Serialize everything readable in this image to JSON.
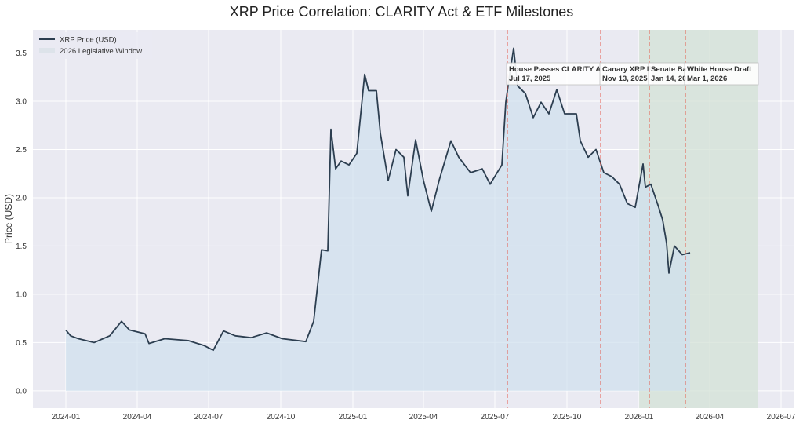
{
  "chart_data": {
    "type": "line",
    "title": "XRP Price Correlation: CLARITY Act & ETF Milestones",
    "xlabel": "",
    "ylabel": "Price (USD)",
    "xlim": [
      "2023-11-20",
      "2026-07-17"
    ],
    "ylim": [
      -0.18,
      3.74
    ],
    "grid": true,
    "legend_placement": "top-left",
    "x_ticks": [
      "2024-01",
      "2024-04",
      "2024-07",
      "2024-10",
      "2025-01",
      "2025-04",
      "2025-07",
      "2025-10",
      "2026-01",
      "2026-04",
      "2026-07"
    ],
    "y_ticks": [
      "0.0",
      "0.5",
      "1.0",
      "1.5",
      "2.0",
      "2.5",
      "3.0",
      "3.5"
    ],
    "colors": {
      "background": "#eaeaf2",
      "line": "#2c3e50",
      "fill": "#cfe0ee",
      "window": "#d3e2d6",
      "event_line": "#e74c3c"
    },
    "series": [
      {
        "name": "XRP Price (USD)",
        "points": [
          [
            "2024-01-01",
            0.63
          ],
          [
            "2024-01-07",
            0.57
          ],
          [
            "2024-01-17",
            0.54
          ],
          [
            "2024-02-06",
            0.5
          ],
          [
            "2024-02-26",
            0.57
          ],
          [
            "2024-03-12",
            0.72
          ],
          [
            "2024-03-22",
            0.63
          ],
          [
            "2024-04-11",
            0.59
          ],
          [
            "2024-04-16",
            0.49
          ],
          [
            "2024-05-06",
            0.54
          ],
          [
            "2024-06-05",
            0.52
          ],
          [
            "2024-06-25",
            0.47
          ],
          [
            "2024-07-07",
            0.42
          ],
          [
            "2024-07-20",
            0.62
          ],
          [
            "2024-08-04",
            0.57
          ],
          [
            "2024-08-24",
            0.55
          ],
          [
            "2024-09-13",
            0.6
          ],
          [
            "2024-10-03",
            0.54
          ],
          [
            "2024-11-02",
            0.51
          ],
          [
            "2024-11-12",
            0.72
          ],
          [
            "2024-11-22",
            1.46
          ],
          [
            "2024-11-30",
            1.45
          ],
          [
            "2024-12-04",
            2.71
          ],
          [
            "2024-12-10",
            2.3
          ],
          [
            "2024-12-17",
            2.38
          ],
          [
            "2024-12-27",
            2.34
          ],
          [
            "2025-01-06",
            2.46
          ],
          [
            "2025-01-16",
            3.28
          ],
          [
            "2025-01-21",
            3.11
          ],
          [
            "2025-01-31",
            3.11
          ],
          [
            "2025-02-05",
            2.67
          ],
          [
            "2025-02-15",
            2.18
          ],
          [
            "2025-02-25",
            2.5
          ],
          [
            "2025-03-07",
            2.42
          ],
          [
            "2025-03-12",
            2.02
          ],
          [
            "2025-03-22",
            2.6
          ],
          [
            "2025-04-01",
            2.18
          ],
          [
            "2025-04-11",
            1.86
          ],
          [
            "2025-04-21",
            2.18
          ],
          [
            "2025-05-06",
            2.59
          ],
          [
            "2025-05-16",
            2.42
          ],
          [
            "2025-05-31",
            2.26
          ],
          [
            "2025-06-15",
            2.3
          ],
          [
            "2025-06-25",
            2.14
          ],
          [
            "2025-07-10",
            2.34
          ],
          [
            "2025-07-15",
            2.99
          ],
          [
            "2025-07-20",
            3.28
          ],
          [
            "2025-07-25",
            3.55
          ],
          [
            "2025-07-30",
            3.16
          ],
          [
            "2025-08-09",
            3.08
          ],
          [
            "2025-08-19",
            2.83
          ],
          [
            "2025-08-29",
            2.99
          ],
          [
            "2025-09-08",
            2.87
          ],
          [
            "2025-09-18",
            3.12
          ],
          [
            "2025-09-28",
            2.87
          ],
          [
            "2025-10-13",
            2.87
          ],
          [
            "2025-10-18",
            2.59
          ],
          [
            "2025-10-28",
            2.42
          ],
          [
            "2025-11-07",
            2.5
          ],
          [
            "2025-11-17",
            2.26
          ],
          [
            "2025-11-27",
            2.22
          ],
          [
            "2025-12-07",
            2.14
          ],
          [
            "2025-12-17",
            1.94
          ],
          [
            "2025-12-27",
            1.9
          ],
          [
            "2026-01-06",
            2.35
          ],
          [
            "2026-01-09",
            2.11
          ],
          [
            "2026-01-16",
            2.14
          ],
          [
            "2026-01-26",
            1.9
          ],
          [
            "2026-01-31",
            1.77
          ],
          [
            "2026-02-05",
            1.53
          ],
          [
            "2026-02-08",
            1.22
          ],
          [
            "2026-02-15",
            1.5
          ],
          [
            "2026-02-25",
            1.41
          ],
          [
            "2026-03-07",
            1.43
          ]
        ]
      }
    ],
    "shaded_region": {
      "name": "2026 Legislative Window",
      "start": "2026-01-01",
      "end": "2026-06-01"
    },
    "events": [
      {
        "date": "2025-07-17",
        "label": "House Passes CLARITY A",
        "date_label": "Jul 17, 2025"
      },
      {
        "date": "2025-11-13",
        "label": "Canary XRP E",
        "date_label": "Nov 13, 2025"
      },
      {
        "date": "2026-01-14",
        "label": "Senate Ba",
        "date_label": "Jan 14, 20"
      },
      {
        "date": "2026-03-01",
        "label": "White House Draft",
        "date_label": "Mar 1, 2026"
      }
    ],
    "legend": [
      "XRP Price (USD)",
      "2026 Legislative Window"
    ]
  }
}
